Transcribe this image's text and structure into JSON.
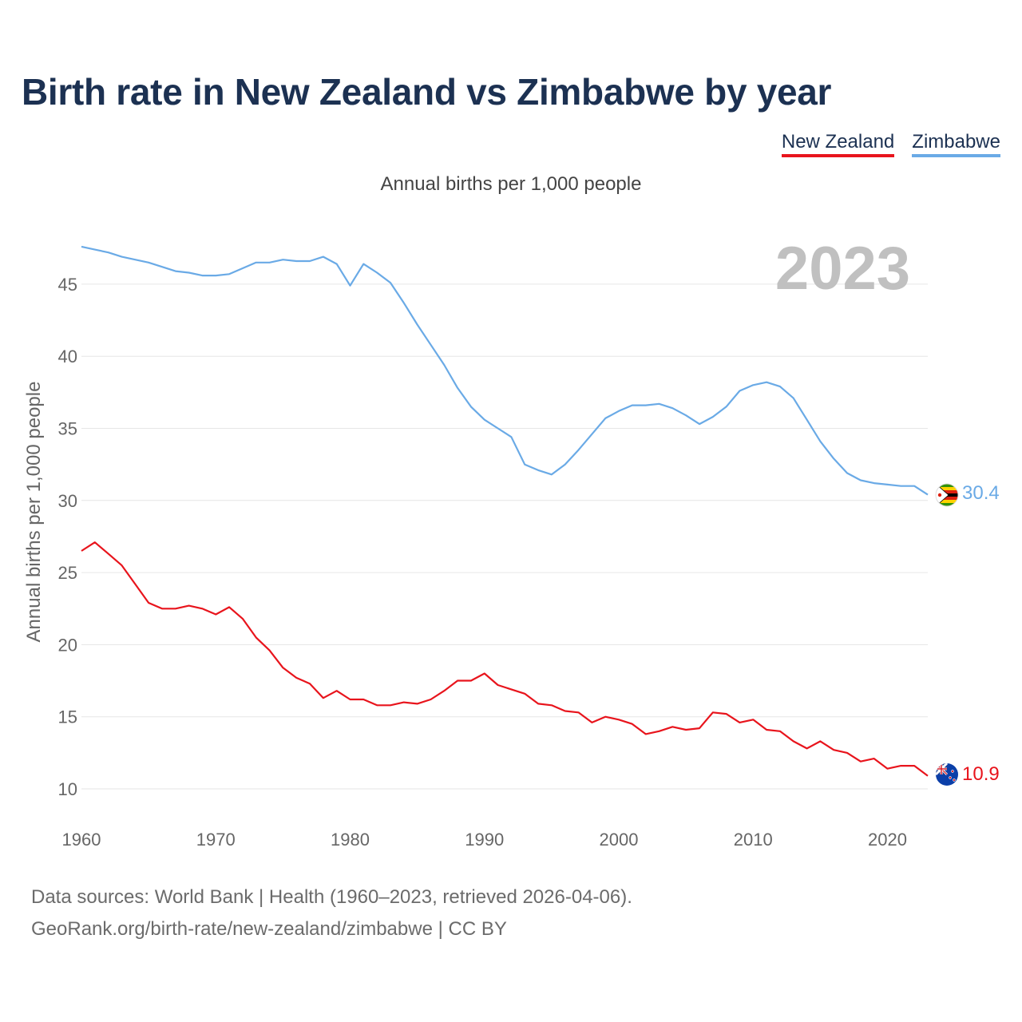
{
  "header": {
    "title": "Birth rate in New Zealand vs Zimbabwe by year",
    "subtitle": "Annual births per 1,000 people"
  },
  "footer": {
    "line1": "Data sources: World Bank | Health (1960–2023, retrieved 2026-04-06).",
    "line2": "GeoRank.org/birth-rate/new-zealand/zimbabwe | CC BY"
  },
  "chart_data": {
    "type": "line",
    "title": "Birth rate in New Zealand vs Zimbabwe by year",
    "subtitle": "Annual births per 1,000 people",
    "ylabel": "Annual births per 1,000 people",
    "xlabel": "",
    "year_label": "2023",
    "xlim": [
      1960,
      2023
    ],
    "ylim": [
      8,
      48
    ],
    "yticks": [
      10,
      15,
      20,
      25,
      30,
      35,
      40,
      45
    ],
    "xticks": [
      1960,
      1970,
      1980,
      1990,
      2000,
      2010,
      2020
    ],
    "grid": true,
    "legend_position": "top-right",
    "x": [
      1960,
      1961,
      1962,
      1963,
      1964,
      1965,
      1966,
      1967,
      1968,
      1969,
      1970,
      1971,
      1972,
      1973,
      1974,
      1975,
      1976,
      1977,
      1978,
      1979,
      1980,
      1981,
      1982,
      1983,
      1984,
      1985,
      1986,
      1987,
      1988,
      1989,
      1990,
      1991,
      1992,
      1993,
      1994,
      1995,
      1996,
      1997,
      1998,
      1999,
      2000,
      2001,
      2002,
      2003,
      2004,
      2005,
      2006,
      2007,
      2008,
      2009,
      2010,
      2011,
      2012,
      2013,
      2014,
      2015,
      2016,
      2017,
      2018,
      2019,
      2020,
      2021,
      2022,
      2023
    ],
    "series": [
      {
        "name": "New Zealand",
        "color": "#e8141c",
        "end_label": "10.9",
        "values": [
          26.5,
          27.1,
          26.3,
          25.5,
          24.2,
          22.9,
          22.5,
          22.5,
          22.7,
          22.5,
          22.1,
          22.6,
          21.8,
          20.5,
          19.6,
          18.4,
          17.7,
          17.3,
          16.3,
          16.8,
          16.2,
          16.2,
          15.8,
          15.8,
          16.0,
          15.9,
          16.2,
          16.8,
          17.5,
          17.5,
          18.0,
          17.2,
          16.9,
          16.6,
          15.9,
          15.8,
          15.4,
          15.3,
          14.6,
          15.0,
          14.8,
          14.5,
          13.8,
          14.0,
          14.3,
          14.1,
          14.2,
          15.3,
          15.2,
          14.6,
          14.8,
          14.1,
          14.0,
          13.3,
          12.8,
          13.3,
          12.7,
          12.5,
          11.9,
          12.1,
          11.4,
          11.6,
          11.6,
          10.9
        ]
      },
      {
        "name": "Zimbabwe",
        "color": "#6aaae6",
        "end_label": "30.4",
        "values": [
          47.6,
          47.4,
          47.2,
          46.9,
          46.7,
          46.5,
          46.2,
          45.9,
          45.8,
          45.6,
          45.6,
          45.7,
          46.1,
          46.5,
          46.5,
          46.7,
          46.6,
          46.6,
          46.9,
          46.4,
          44.9,
          46.4,
          45.8,
          45.1,
          43.7,
          42.2,
          40.8,
          39.4,
          37.8,
          36.5,
          35.6,
          35.0,
          34.4,
          32.5,
          32.1,
          31.8,
          32.5,
          33.5,
          34.6,
          35.7,
          36.2,
          36.6,
          36.6,
          36.7,
          36.4,
          35.9,
          35.3,
          35.8,
          36.5,
          37.6,
          38.0,
          38.2,
          37.9,
          37.1,
          35.6,
          34.1,
          32.9,
          31.9,
          31.4,
          31.2,
          31.1,
          31.0,
          31.0,
          30.4
        ]
      }
    ]
  }
}
